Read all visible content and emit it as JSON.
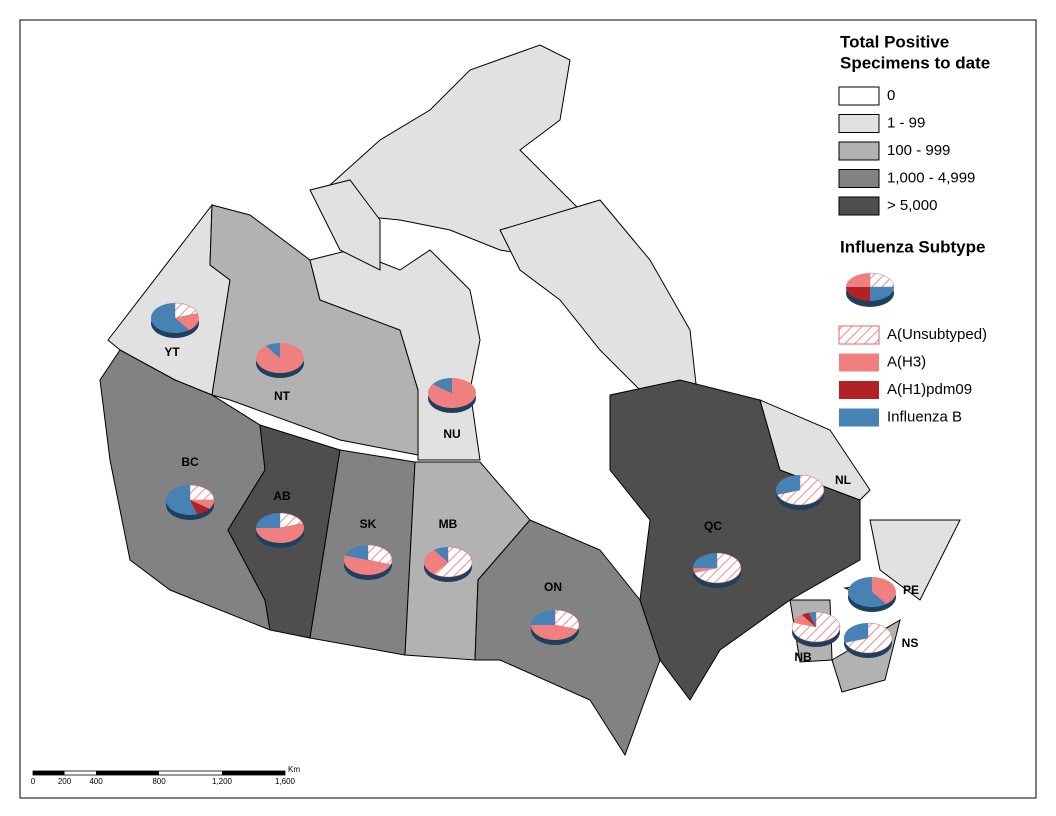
{
  "map": {
    "legend": {
      "title": [
        "Total Positive",
        "Specimens to date"
      ],
      "classes": [
        {
          "label": "0",
          "color": "#ffffff"
        },
        {
          "label": "1 - 99",
          "color": "#e1e1e1"
        },
        {
          "label": "100 - 999",
          "color": "#b2b2b2"
        },
        {
          "label": "1,000 - 4,999",
          "color": "#828282"
        },
        {
          "label": "> 5,000",
          "color": "#4e4e4e"
        }
      ],
      "subtype_title": "Influenza Subtype",
      "subtypes": [
        {
          "label": "A(Unsubtyped)",
          "color": "#e26a6a",
          "hatched": true
        },
        {
          "label": "A(H3)",
          "color": "#f08080",
          "hatched": false
        },
        {
          "label": "A(H1)pdm09",
          "color": "#b22222",
          "hatched": false
        },
        {
          "label": "Influenza B",
          "color": "#4682b4",
          "hatched": false
        }
      ]
    },
    "provinces": [
      {
        "code": "YT",
        "class": "1 - 99",
        "values": [
          20,
          20,
          0,
          60
        ]
      },
      {
        "code": "NT",
        "class": "100 - 999",
        "values": [
          0,
          90,
          0,
          10
        ]
      },
      {
        "code": "NU",
        "class": "1 - 99",
        "values": [
          0,
          85,
          0,
          15
        ]
      },
      {
        "code": "BC",
        "class": "1,000 - 4,999",
        "values": [
          25,
          10,
          10,
          55
        ]
      },
      {
        "code": "AB",
        "class": "> 5,000",
        "values": [
          20,
          55,
          0,
          25
        ]
      },
      {
        "code": "SK",
        "class": "1,000 - 4,999",
        "values": [
          30,
          50,
          0,
          20
        ]
      },
      {
        "code": "MB",
        "class": "100 - 999",
        "values": [
          60,
          30,
          0,
          10
        ]
      },
      {
        "code": "ON",
        "class": "1,000 - 4,999",
        "values": [
          30,
          45,
          0,
          25
        ]
      },
      {
        "code": "QC",
        "class": "> 5,000",
        "values": [
          70,
          5,
          0,
          25
        ]
      },
      {
        "code": "NL",
        "class": "1 - 99",
        "values": [
          70,
          0,
          0,
          30
        ]
      },
      {
        "code": "PE",
        "class": "1 - 99",
        "values": [
          0,
          40,
          0,
          60
        ]
      },
      {
        "code": "NB",
        "class": "100 - 999",
        "values": [
          80,
          10,
          5,
          5
        ]
      },
      {
        "code": "NS",
        "class": "100 - 999",
        "values": [
          70,
          0,
          0,
          30
        ]
      }
    ],
    "scale_bar": {
      "unit": "Km",
      "ticks": [
        0,
        200,
        400,
        800,
        {
          "value": 1200,
          "label": "1,200"
        },
        {
          "value": 1600,
          "label": "1,600"
        }
      ]
    }
  }
}
